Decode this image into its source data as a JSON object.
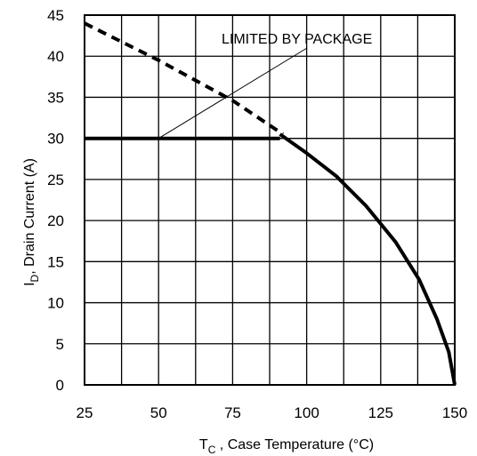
{
  "chart_data": {
    "type": "line",
    "xlabel": {
      "main": "T",
      "sub": "C",
      "rest": " , Case Temperature (°C)"
    },
    "ylabel": {
      "main": "I",
      "sub": "D",
      "rest": ", Drain Current  (A)"
    },
    "xlim": [
      25,
      150
    ],
    "ylim": [
      0,
      45
    ],
    "xticks": [
      25,
      50,
      75,
      100,
      125,
      150
    ],
    "yticks": [
      0,
      5,
      10,
      15,
      20,
      25,
      30,
      35,
      40,
      45
    ],
    "grid": true,
    "annotation": {
      "text": "LIMITED BY PACKAGE",
      "points_to": {
        "x": 50,
        "y": 30
      }
    },
    "series": [
      {
        "style": "dashed",
        "x": [
          25,
          50,
          75,
          92
        ],
        "y": [
          44,
          39.5,
          34.6,
          30.5
        ]
      },
      {
        "style": "solid",
        "x": [
          25,
          91
        ],
        "y": [
          30,
          30
        ]
      },
      {
        "style": "solid",
        "x": [
          91,
          100,
          110,
          120,
          130,
          138,
          144,
          148,
          150
        ],
        "y": [
          30.5,
          28.2,
          25.4,
          21.8,
          17.4,
          12.8,
          8,
          4,
          0
        ]
      }
    ]
  }
}
